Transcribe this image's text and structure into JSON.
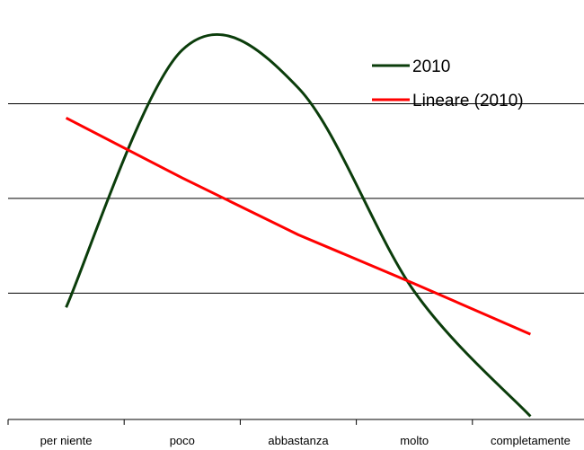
{
  "chart_data": {
    "type": "line",
    "categories": [
      "per niente",
      "poco",
      "abbastanza",
      "molto",
      "completamente"
    ],
    "series": [
      {
        "name": "2010",
        "color": "#0b3d0b",
        "values": [
          5.1,
          21.4,
          19.0,
          6.1,
          -1.8
        ]
      },
      {
        "name": "Lineare (2010)",
        "color": "#ff0000",
        "values": [
          17.1,
          13.3,
          9.7,
          6.6,
          3.4
        ]
      }
    ],
    "ylim": [
      -2,
      24
    ],
    "gridlines_y": [
      6,
      12,
      18
    ],
    "y_axis_labels_shown": false,
    "smooth_lines": true,
    "legend_position": "top-right"
  }
}
